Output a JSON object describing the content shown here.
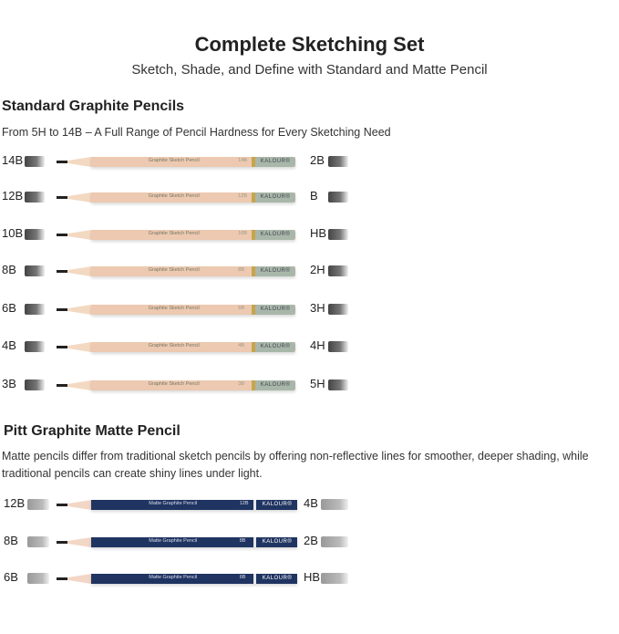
{
  "header": {
    "title": "Complete Sketching Set",
    "subtitle": "Sketch, Shade, and Define with Standard and Matte Pencil"
  },
  "standard": {
    "heading": "Standard Graphite Pencils",
    "description": "From 5H to 14B – A Full Range of Pencil Hardness for Every Sketching Need",
    "pencil_text": "Graphite Sketch Pencil",
    "brand": "KALOUR®",
    "left": [
      "14B",
      "12B",
      "10B",
      "8B",
      "6B",
      "4B",
      "3B"
    ],
    "right": [
      "2B",
      "B",
      "HB",
      "2H",
      "3H",
      "4H",
      "5H"
    ],
    "colors": {
      "body": "#ecc9b0",
      "cone": "#f3d9c2",
      "end": "#a8b7a9",
      "band": "#c8a44a"
    }
  },
  "matte": {
    "heading": "Pitt Graphite Matte Pencil",
    "description": "Matte pencils differ from traditional sketch pencils by offering non-reflective lines for smoother, deeper shading, while traditional pencils can create shiny lines under light.",
    "pencil_text": "Matte Graphite Pencil",
    "brand": "KALOUR®",
    "left": [
      "12B",
      "8B",
      "6B"
    ],
    "right": [
      "4B",
      "2B",
      "HB"
    ],
    "colors": {
      "body": "#1f3461",
      "cone": "#f2d6c6",
      "end": "#1f3461",
      "band": "#e6e6ea"
    }
  }
}
